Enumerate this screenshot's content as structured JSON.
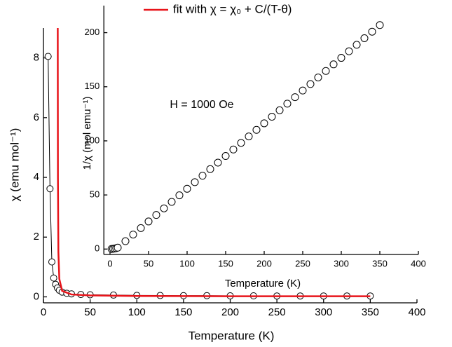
{
  "chart_data": [
    {
      "type": "line",
      "xlabel": "Temperature (K)",
      "ylabel": "χ (emu mol⁻¹)",
      "xlim": [
        0,
        400
      ],
      "ylim": [
        -0.2,
        9
      ],
      "xticks": [
        0,
        50,
        100,
        150,
        200,
        250,
        300,
        350,
        400
      ],
      "yticks": [
        0,
        2,
        4,
        6,
        8
      ],
      "legend": "top",
      "series": [
        {
          "color": "#000000",
          "markers": true,
          "x": [
            5,
            7,
            9,
            11,
            13,
            15,
            17,
            20,
            25,
            30,
            40,
            50,
            75,
            100,
            125,
            150,
            175,
            200,
            225,
            250,
            275,
            300,
            325,
            350
          ],
          "values": [
            8.05,
            3.62,
            1.17,
            0.63,
            0.42,
            0.3,
            0.22,
            0.16,
            0.12,
            0.1,
            0.08,
            0.07,
            0.06,
            0.05,
            0.045,
            0.04,
            0.04,
            0.035,
            0.035,
            0.03,
            0.03,
            0.03,
            0.03,
            0.03
          ]
        },
        {
          "name": "fit with χ = χ₀ + C/(T-θ)",
          "color": "#e8141a",
          "markers": false,
          "x": [
            15.2,
            15.5,
            16,
            17,
            20,
            30,
            50,
            100,
            200,
            350
          ],
          "values": [
            12,
            4,
            1.5,
            0.6,
            0.2,
            0.08,
            0.05,
            0.03,
            0.02,
            0.02
          ]
        }
      ]
    },
    {
      "type": "scatter",
      "xlabel": "Temperature (K)",
      "ylabel": "1/χ (mol emu⁻¹)",
      "annotation": "H = 1000 Oe",
      "xlim": [
        -8,
        400
      ],
      "ylim": [
        -5,
        225
      ],
      "xticks": [
        0,
        50,
        100,
        150,
        200,
        250,
        300,
        350,
        400
      ],
      "yticks": [
        0,
        50,
        100,
        150,
        200
      ],
      "series": [
        {
          "color": "#000000",
          "x": [
            2,
            4,
            6,
            8,
            10,
            20,
            30,
            40,
            50,
            60,
            70,
            80,
            90,
            100,
            110,
            120,
            130,
            140,
            150,
            160,
            170,
            180,
            190,
            200,
            210,
            220,
            230,
            240,
            250,
            260,
            270,
            280,
            290,
            300,
            310,
            320,
            330,
            340,
            350
          ],
          "values": [
            0.12,
            0.27,
            0.5,
            0.8,
            1.3,
            7.3,
            13.4,
            19.4,
            25.5,
            31.5,
            37.6,
            43.6,
            49.7,
            55.7,
            61.8,
            67.8,
            73.9,
            79.9,
            86,
            92,
            98.1,
            104.1,
            110.2,
            116.2,
            122.3,
            128.3,
            134.4,
            140.4,
            146.5,
            152.5,
            158.6,
            164.6,
            170.7,
            176.7,
            182.8,
            188.8,
            194.9,
            200.9,
            207
          ]
        }
      ]
    }
  ]
}
